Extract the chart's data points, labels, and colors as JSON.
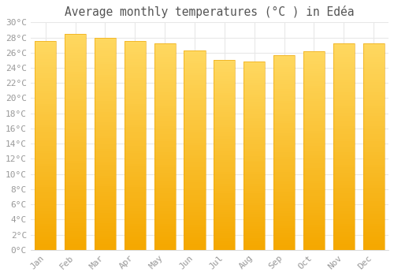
{
  "title": "Average monthly temperatures (°C ) in Edéa",
  "months": [
    "Jan",
    "Feb",
    "Mar",
    "Apr",
    "May",
    "Jun",
    "Jul",
    "Aug",
    "Sep",
    "Oct",
    "Nov",
    "Dec"
  ],
  "values": [
    27.5,
    28.5,
    28.0,
    27.5,
    27.2,
    26.3,
    25.0,
    24.8,
    25.7,
    26.2,
    27.2,
    27.2
  ],
  "bar_color_light": "#FFD860",
  "bar_color_dark": "#F5A800",
  "background_color": "#FFFFFF",
  "grid_color": "#E8E8E8",
  "text_color": "#999999",
  "ylim": [
    0,
    30
  ],
  "ytick_step": 2,
  "title_fontsize": 10.5,
  "tick_fontsize": 8,
  "bar_width": 0.72
}
